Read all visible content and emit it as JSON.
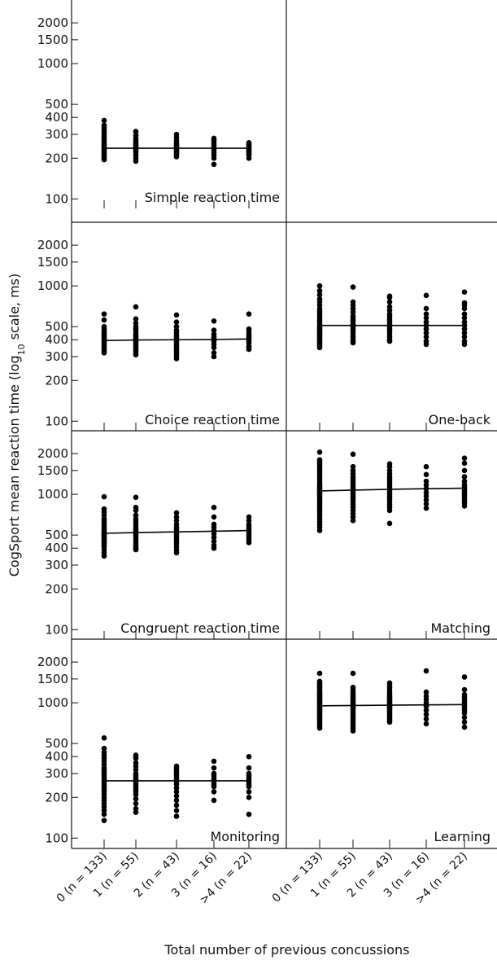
{
  "figure": {
    "ylabel": "CogSport mean reaction time (log",
    "ylabel_sub": "10",
    "ylabel_tail": " scale, ms)",
    "xlabel": "Total number of previous concussions"
  },
  "chart_data": {
    "type": "scatter",
    "yscale": "log",
    "ylim": [
      95,
      2300
    ],
    "yticks": [
      100,
      200,
      300,
      400,
      500,
      1000,
      1500,
      2000
    ],
    "ytick_labels": [
      "100",
      "200",
      "300",
      "400",
      "500",
      "1000",
      "1500",
      "2000"
    ],
    "categories": [
      "0 (n = 133)",
      "1 (n = 55)",
      "2 (n = 43)",
      "3 (n = 16)",
      ">4 (n = 22)"
    ],
    "panels": [
      {
        "name": "Simple reaction time",
        "row": 0,
        "col": 0,
        "trend": [
          237,
          237,
          237,
          237,
          237
        ],
        "points": [
          [
            195,
            200,
            205,
            210,
            215,
            220,
            225,
            230,
            235,
            240,
            245,
            250,
            255,
            260,
            270,
            280,
            290,
            300,
            310,
            320,
            335,
            350,
            380
          ],
          [
            190,
            200,
            210,
            220,
            225,
            230,
            235,
            240,
            245,
            250,
            255,
            260,
            270,
            280,
            295,
            315
          ],
          [
            205,
            210,
            215,
            220,
            225,
            230,
            235,
            240,
            245,
            250,
            255,
            260,
            270,
            285,
            300
          ],
          [
            180,
            200,
            210,
            220,
            230,
            240,
            250,
            260,
            270,
            280
          ],
          [
            200,
            210,
            215,
            220,
            225,
            230,
            235,
            240,
            245,
            250,
            255,
            260
          ]
        ]
      },
      {
        "name": "Choice reaction time",
        "row": 1,
        "col": 0,
        "trend": [
          395,
          398,
          400,
          402,
          405
        ],
        "points": [
          [
            320,
            330,
            340,
            350,
            360,
            370,
            380,
            390,
            400,
            410,
            420,
            430,
            440,
            450,
            460,
            480,
            500,
            560,
            620
          ],
          [
            310,
            320,
            330,
            340,
            350,
            360,
            370,
            380,
            390,
            400,
            410,
            420,
            430,
            440,
            460,
            480,
            500,
            530,
            570,
            700
          ],
          [
            290,
            300,
            310,
            320,
            330,
            340,
            350,
            360,
            370,
            380,
            390,
            400,
            410,
            420,
            430,
            450,
            470,
            500,
            540,
            610
          ],
          [
            300,
            320,
            350,
            370,
            390,
            400,
            410,
            420,
            440,
            470,
            550
          ],
          [
            340,
            350,
            360,
            380,
            390,
            400,
            410,
            420,
            430,
            440,
            460,
            480,
            620
          ]
        ]
      },
      {
        "name": "One-back",
        "row": 1,
        "col": 1,
        "trend": [
          510,
          510,
          510,
          510,
          510
        ],
        "points": [
          [
            350,
            360,
            370,
            380,
            390,
            400,
            410,
            420,
            430,
            440,
            450,
            460,
            470,
            480,
            490,
            500,
            520,
            540,
            560,
            580,
            600,
            620,
            650,
            680,
            720,
            760,
            800,
            860,
            920,
            1000
          ],
          [
            380,
            390,
            400,
            420,
            440,
            460,
            480,
            500,
            520,
            540,
            560,
            580,
            600,
            640,
            680,
            720,
            760,
            980
          ],
          [
            390,
            400,
            420,
            440,
            460,
            480,
            500,
            520,
            540,
            560,
            580,
            600,
            620,
            660,
            700,
            760,
            820,
            840
          ],
          [
            370,
            390,
            420,
            450,
            480,
            510,
            540,
            580,
            620,
            680,
            850
          ],
          [
            370,
            390,
            420,
            450,
            480,
            510,
            540,
            580,
            620,
            680,
            720,
            750,
            900
          ]
        ]
      },
      {
        "name": "Congruent reaction time",
        "row": 2,
        "col": 0,
        "trend": [
          515,
          522,
          528,
          534,
          540
        ],
        "points": [
          [
            350,
            370,
            390,
            410,
            420,
            430,
            440,
            450,
            460,
            470,
            480,
            490,
            500,
            510,
            520,
            530,
            540,
            560,
            580,
            600,
            620,
            640,
            660,
            700,
            740,
            780,
            960
          ],
          [
            390,
            400,
            410,
            420,
            440,
            460,
            480,
            500,
            520,
            540,
            560,
            580,
            600,
            630,
            660,
            700,
            760,
            800,
            950
          ],
          [
            370,
            390,
            410,
            430,
            450,
            470,
            490,
            510,
            530,
            550,
            570,
            600,
            640,
            680,
            730
          ],
          [
            400,
            420,
            450,
            480,
            510,
            540,
            570,
            600,
            680,
            800
          ],
          [
            440,
            460,
            480,
            500,
            520,
            540,
            560,
            580,
            600,
            640,
            680
          ]
        ]
      },
      {
        "name": "Matching",
        "row": 2,
        "col": 1,
        "trend": [
          1060,
          1075,
          1090,
          1100,
          1110
        ],
        "points": [
          [
            540,
            570,
            600,
            630,
            660,
            690,
            720,
            750,
            780,
            810,
            840,
            870,
            900,
            930,
            960,
            990,
            1020,
            1050,
            1080,
            1110,
            1140,
            1170,
            1200,
            1250,
            1300,
            1350,
            1400,
            1450,
            1500,
            1550,
            1600,
            1650,
            1700,
            1750,
            1800,
            2050
          ],
          [
            640,
            680,
            720,
            760,
            800,
            840,
            880,
            920,
            960,
            1000,
            1040,
            1080,
            1120,
            1160,
            1200,
            1250,
            1300,
            1350,
            1420,
            1500,
            1600,
            1980
          ],
          [
            610,
            760,
            800,
            840,
            880,
            920,
            960,
            1000,
            1040,
            1080,
            1120,
            1160,
            1200,
            1250,
            1300,
            1350,
            1420,
            1500,
            1600,
            1680
          ],
          [
            790,
            850,
            910,
            970,
            1030,
            1100,
            1170,
            1250,
            1400,
            1600
          ],
          [
            820,
            860,
            900,
            940,
            980,
            1020,
            1060,
            1100,
            1140,
            1180,
            1250,
            1350,
            1500,
            1700,
            1850
          ]
        ]
      },
      {
        "name": "Monitoring",
        "row": 3,
        "col": 0,
        "trend": [
          265,
          265,
          265,
          265,
          265
        ],
        "points": [
          [
            135,
            150,
            160,
            170,
            180,
            190,
            200,
            210,
            220,
            230,
            240,
            250,
            260,
            270,
            280,
            290,
            300,
            310,
            320,
            330,
            350,
            370,
            390,
            410,
            430,
            460,
            550
          ],
          [
            155,
            165,
            180,
            195,
            210,
            220,
            230,
            240,
            250,
            260,
            270,
            280,
            290,
            300,
            320,
            340,
            360,
            390,
            410
          ],
          [
            145,
            160,
            175,
            190,
            205,
            220,
            235,
            250,
            260,
            270,
            280,
            290,
            300,
            310,
            320,
            330,
            340
          ],
          [
            190,
            220,
            240,
            250,
            260,
            270,
            280,
            290,
            300,
            330,
            370
          ],
          [
            150,
            200,
            220,
            240,
            250,
            260,
            270,
            280,
            290,
            300,
            330,
            400
          ]
        ]
      },
      {
        "name": "Learning",
        "row": 3,
        "col": 1,
        "trend": [
          950,
          955,
          960,
          965,
          970
        ],
        "points": [
          [
            650,
            670,
            690,
            710,
            730,
            750,
            770,
            790,
            810,
            830,
            850,
            870,
            890,
            910,
            930,
            950,
            970,
            990,
            1010,
            1030,
            1050,
            1070,
            1090,
            1110,
            1130,
            1150,
            1170,
            1200,
            1230,
            1260,
            1290,
            1320,
            1350,
            1380,
            1410,
            1440,
            1650
          ],
          [
            620,
            650,
            680,
            710,
            740,
            770,
            800,
            830,
            860,
            890,
            920,
            950,
            980,
            1010,
            1040,
            1070,
            1100,
            1130,
            1160,
            1200,
            1250,
            1300,
            1650
          ],
          [
            720,
            740,
            760,
            780,
            800,
            820,
            840,
            860,
            880,
            900,
            920,
            940,
            960,
            980,
            1000,
            1020,
            1040,
            1060,
            1080,
            1100,
            1130,
            1160,
            1200,
            1250,
            1300,
            1350,
            1400
          ],
          [
            700,
            760,
            820,
            880,
            940,
            1000,
            1060,
            1120,
            1200,
            1720
          ],
          [
            660,
            720,
            780,
            840,
            880,
            920,
            960,
            1000,
            1050,
            1100,
            1150,
            1250,
            1550
          ]
        ]
      }
    ]
  }
}
